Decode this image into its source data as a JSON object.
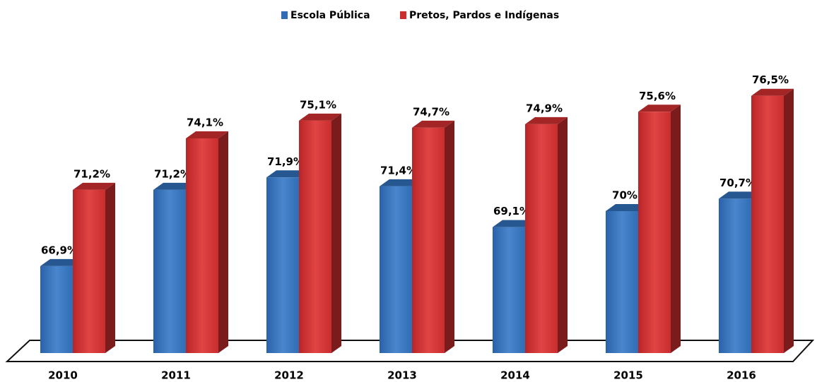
{
  "chart_data": {
    "type": "bar3d",
    "categories": [
      "2010",
      "2011",
      "2012",
      "2013",
      "2014",
      "2015",
      "2016"
    ],
    "series": [
      {
        "name": "Escola Pública",
        "color": "#2f6db5",
        "values": [
          66.9,
          71.2,
          71.9,
          71.4,
          69.1,
          70,
          70.7
        ],
        "value_labels": [
          "66,9%",
          "71,2%",
          "71,9%",
          "71,4%",
          "69,1%",
          "70%",
          "70,7%"
        ]
      },
      {
        "name": "Pretos, Pardos e Indígenas",
        "color": "#cc2e2e",
        "values": [
          71.2,
          74.1,
          75.1,
          74.7,
          74.9,
          75.6,
          76.5
        ],
        "value_labels": [
          "71,2%",
          "74,1%",
          "75,1%",
          "74,7%",
          "74,9%",
          "75,6%",
          "76,5%"
        ]
      }
    ],
    "ylim": [
      62,
      78
    ],
    "legend": "top"
  }
}
